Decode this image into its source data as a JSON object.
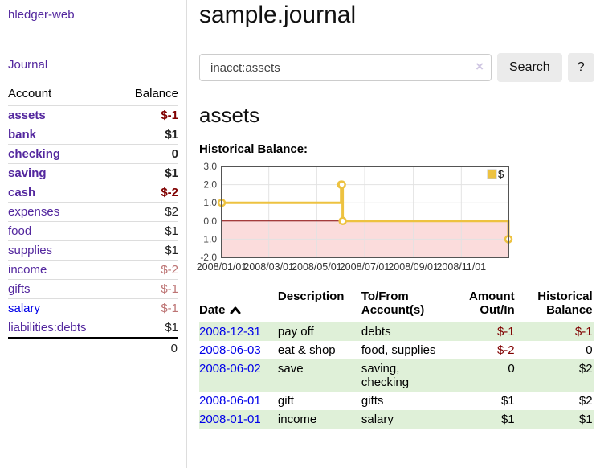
{
  "colors": {
    "link_purple": "#53279e",
    "link_blue": "#0000e8",
    "negative_strong": "#800000",
    "negative_soft": "#bd7474",
    "row_stripe_green": "#dff0d8",
    "chart_line_gold": "#edc240",
    "chart_negative_region_pink": "#fbdcdc",
    "chart_zero_line_red": "#8b0000"
  },
  "sidebar": {
    "brand": "hledger-web",
    "journal_link": "Journal",
    "table": {
      "account_header": "Account",
      "balance_header": "Balance",
      "rows": [
        {
          "name": "assets",
          "balance": "$-1",
          "depth": 1,
          "bold": true,
          "blue": false
        },
        {
          "name": "bank",
          "balance": "$1",
          "depth": 2,
          "bold": true,
          "blue": false
        },
        {
          "name": "checking",
          "balance": "0",
          "depth": 3,
          "bold": true,
          "blue": false
        },
        {
          "name": "saving",
          "balance": "$1",
          "depth": 3,
          "bold": true,
          "blue": false
        },
        {
          "name": "cash",
          "balance": "$-2",
          "depth": 2,
          "bold": true,
          "blue": false
        },
        {
          "name": "expenses",
          "balance": "$2",
          "depth": 1,
          "bold": false,
          "blue": false
        },
        {
          "name": "food",
          "balance": "$1",
          "depth": 2,
          "bold": false,
          "blue": false
        },
        {
          "name": "supplies",
          "balance": "$1",
          "depth": 2,
          "bold": false,
          "blue": false
        },
        {
          "name": "income",
          "balance": "$-2",
          "depth": 1,
          "bold": false,
          "blue": false
        },
        {
          "name": "gifts",
          "balance": "$-1",
          "depth": 2,
          "bold": false,
          "blue": false
        },
        {
          "name": "salary",
          "balance": "$-1",
          "depth": 2,
          "bold": false,
          "blue": true
        },
        {
          "name": "liabilities:debts",
          "balance": "$1",
          "depth": 1,
          "bold": false,
          "blue": false
        }
      ],
      "total": "0"
    }
  },
  "header": {
    "title": "sample.journal"
  },
  "search": {
    "value": "inacct:assets",
    "clear_icon": "×",
    "button_label": "Search",
    "help_label": "?"
  },
  "account_page": {
    "title": "assets",
    "chart_label": "Historical Balance:"
  },
  "chart_data": {
    "type": "line",
    "step": true,
    "title": "Historical Balance:",
    "series": [
      {
        "name": "$",
        "color": "#edc240",
        "points": [
          [
            "2008-01-01",
            1
          ],
          [
            "2008-06-01",
            2
          ],
          [
            "2008-06-02",
            2
          ],
          [
            "2008-06-03",
            0
          ],
          [
            "2008-12-31",
            -1
          ]
        ]
      }
    ],
    "xlim": [
      "2008-01-01",
      "2008-12-31"
    ],
    "ylim": [
      -2,
      3
    ],
    "x_tick_labels": [
      "2008/01/01",
      "2008/03/01",
      "2008/05/01",
      "2008/07/01",
      "2008/09/01",
      "2008/11/01"
    ],
    "y_tick_labels": [
      "3.0",
      "2.0",
      "1.0",
      "0.0",
      "-1.0",
      "-2.0"
    ],
    "grid": true,
    "legend_position": "top-right",
    "negative_region_color": "#fbdcdc",
    "zero_line_color": "#8b0000"
  },
  "register": {
    "headers": {
      "date": "Date",
      "sort_icon": "chevron-up",
      "description": "Description",
      "accounts": "To/From\nAccount(s)",
      "amount": "Amount\nOut/In",
      "balance": "Historical\nBalance"
    },
    "rows": [
      {
        "date": "2008-12-31",
        "description": "pay off",
        "accounts": "debts",
        "amount": "$-1",
        "balance": "$-1"
      },
      {
        "date": "2008-06-03",
        "description": "eat & shop",
        "accounts": "food, supplies",
        "amount": "$-2",
        "balance": "0"
      },
      {
        "date": "2008-06-02",
        "description": "save",
        "accounts": "saving,\nchecking",
        "amount": "0",
        "balance": "$2"
      },
      {
        "date": "2008-06-01",
        "description": "gift",
        "accounts": "gifts",
        "amount": "$1",
        "balance": "$2"
      },
      {
        "date": "2008-01-01",
        "description": "income",
        "accounts": "salary",
        "amount": "$1",
        "balance": "$1"
      }
    ]
  }
}
